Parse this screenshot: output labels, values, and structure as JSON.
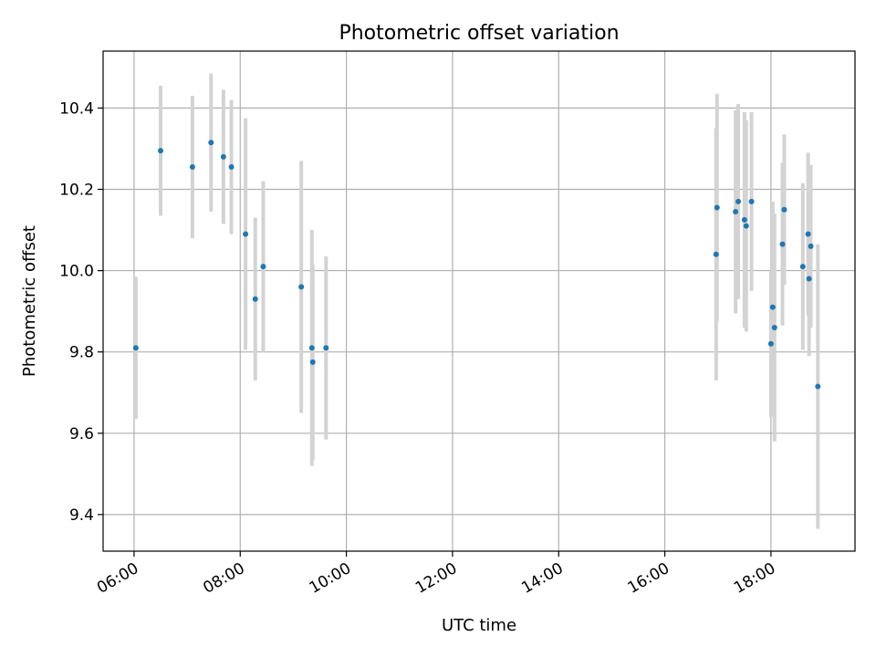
{
  "chart_data": {
    "type": "scatter",
    "title": "Photometric offset variation",
    "xlabel": "UTC time",
    "ylabel": "Photometric offset",
    "x_is_time": true,
    "xlim": [
      "05:25",
      "19:35"
    ],
    "ylim": [
      9.31,
      10.54
    ],
    "x_ticks": [
      "06:00",
      "08:00",
      "10:00",
      "12:00",
      "14:00",
      "16:00",
      "18:00"
    ],
    "y_ticks": [
      "9.4",
      "9.6",
      "9.8",
      "10.0",
      "10.2",
      "10.4"
    ],
    "grid": true,
    "colors": {
      "point": "#1f77b4",
      "errorbar": "#d3d3d3",
      "grid": "#b0b0b0"
    },
    "points": [
      {
        "t": "06:02",
        "y": 9.81,
        "yerr": 0.175
      },
      {
        "t": "06:30",
        "y": 10.295,
        "yerr": 0.16
      },
      {
        "t": "07:06",
        "y": 10.255,
        "yerr": 0.175
      },
      {
        "t": "07:27",
        "y": 10.315,
        "yerr": 0.17
      },
      {
        "t": "07:41",
        "y": 10.28,
        "yerr": 0.165
      },
      {
        "t": "07:50",
        "y": 10.255,
        "yerr": 0.165
      },
      {
        "t": "08:06",
        "y": 10.09,
        "yerr": 0.285
      },
      {
        "t": "08:17",
        "y": 9.93,
        "yerr": 0.2
      },
      {
        "t": "08:26",
        "y": 10.01,
        "yerr": 0.21
      },
      {
        "t": "09:09",
        "y": 9.96,
        "yerr": 0.31
      },
      {
        "t": "09:21",
        "y": 9.81,
        "yerr": 0.29
      },
      {
        "t": "09:22",
        "y": 9.775,
        "yerr": 0.24
      },
      {
        "t": "09:37",
        "y": 9.81,
        "yerr": 0.225
      },
      {
        "t": "16:58",
        "y": 10.04,
        "yerr": 0.31
      },
      {
        "t": "16:59",
        "y": 10.155,
        "yerr": 0.28
      },
      {
        "t": "17:20",
        "y": 10.145,
        "yerr": 0.25
      },
      {
        "t": "17:23",
        "y": 10.17,
        "yerr": 0.24
      },
      {
        "t": "17:30",
        "y": 10.125,
        "yerr": 0.265
      },
      {
        "t": "17:32",
        "y": 10.11,
        "yerr": 0.26
      },
      {
        "t": "17:38",
        "y": 10.17,
        "yerr": 0.22
      },
      {
        "t": "18:00",
        "y": 9.82,
        "yerr": 0.18
      },
      {
        "t": "18:02",
        "y": 9.91,
        "yerr": 0.26
      },
      {
        "t": "18:04",
        "y": 9.86,
        "yerr": 0.28
      },
      {
        "t": "18:13",
        "y": 10.065,
        "yerr": 0.2
      },
      {
        "t": "18:15",
        "y": 10.15,
        "yerr": 0.185
      },
      {
        "t": "18:36",
        "y": 10.01,
        "yerr": 0.205
      },
      {
        "t": "18:42",
        "y": 10.09,
        "yerr": 0.2
      },
      {
        "t": "18:43",
        "y": 9.98,
        "yerr": 0.19
      },
      {
        "t": "18:45",
        "y": 10.06,
        "yerr": 0.2
      },
      {
        "t": "18:53",
        "y": 9.715,
        "yerr": 0.35
      }
    ]
  }
}
